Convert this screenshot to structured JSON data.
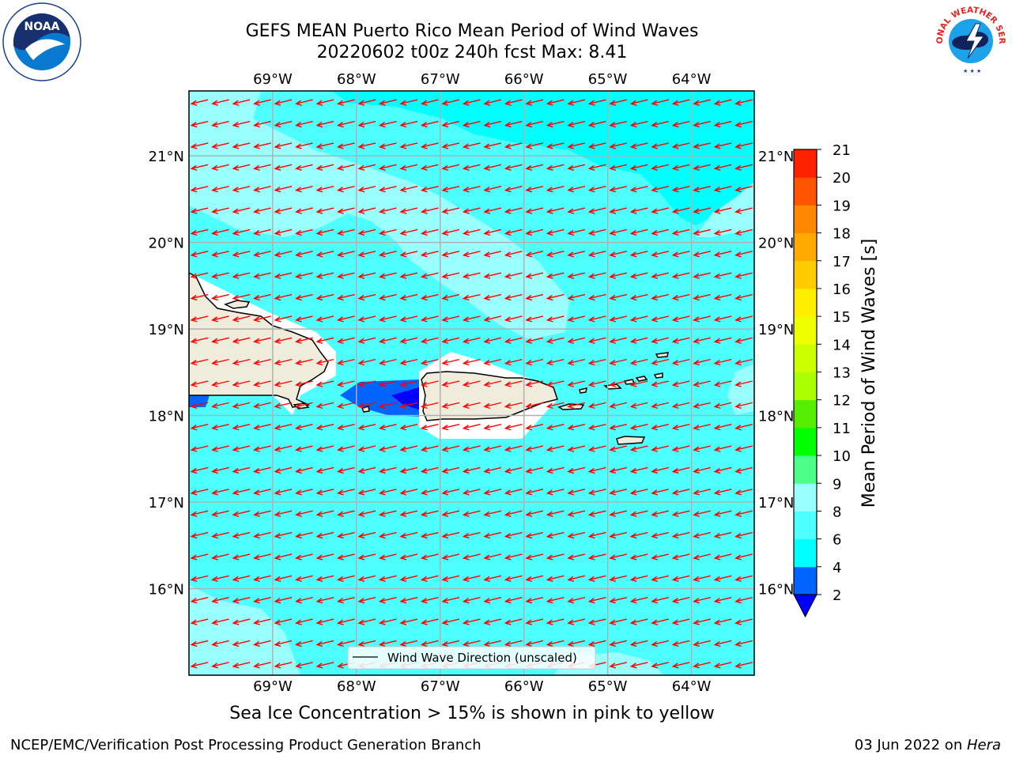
{
  "title_line1": "GEFS MEAN Puerto Rico Mean Period of Wind Waves",
  "title_line2": "20220602 t00z 240h fcst   Max: 8.41",
  "subtitle": "Sea Ice Concentration > 15% is shown in pink to yellow",
  "footer_left": "NCEP/EMC/Verification Post Processing Product Generation Branch",
  "footer_right_date": "03 Jun 2022 on ",
  "footer_right_host": "Hera",
  "legend_label": "Wind Wave Direction (unscaled)",
  "colorbar": {
    "label": "Mean Period of Wind Waves [s]",
    "ticks": [
      2,
      4,
      6,
      8,
      9,
      10,
      11,
      12,
      13,
      14,
      15,
      16,
      17,
      18,
      19,
      20,
      21
    ],
    "colors": [
      "#0064ff",
      "#00ffff",
      "#4dffff",
      "#99ffff",
      "#4dff88",
      "#00ff00",
      "#55ee00",
      "#aaff00",
      "#ccff00",
      "#eeff00",
      "#ffee00",
      "#ffcc00",
      "#ffaa00",
      "#ff8800",
      "#ff5500",
      "#ff2200"
    ],
    "under_color": "#0000ff"
  },
  "map": {
    "lon_ticks": [
      -69,
      -68,
      -67,
      -66,
      -65,
      -64
    ],
    "lon_labels": [
      "69°W",
      "68°W",
      "67°W",
      "66°W",
      "65°W",
      "64°W"
    ],
    "lat_ticks": [
      16,
      17,
      18,
      19,
      20,
      21
    ],
    "lat_labels": [
      "16°N",
      "17°N",
      "18°N",
      "19°N",
      "20°N",
      "21°N"
    ],
    "lon_range": [
      -70.0,
      -63.25
    ],
    "lat_range": [
      15.0,
      21.75
    ],
    "wave_direction": "westward",
    "background_period_s": 6.5,
    "colors": {
      "land": "#efecdc",
      "ocean": "#4dffff",
      "arrow": "#ff0000",
      "grid": "#b0b0b0"
    }
  },
  "logos": {
    "left": "NOAA",
    "right": "NATIONAL WEATHER SERVICE"
  }
}
